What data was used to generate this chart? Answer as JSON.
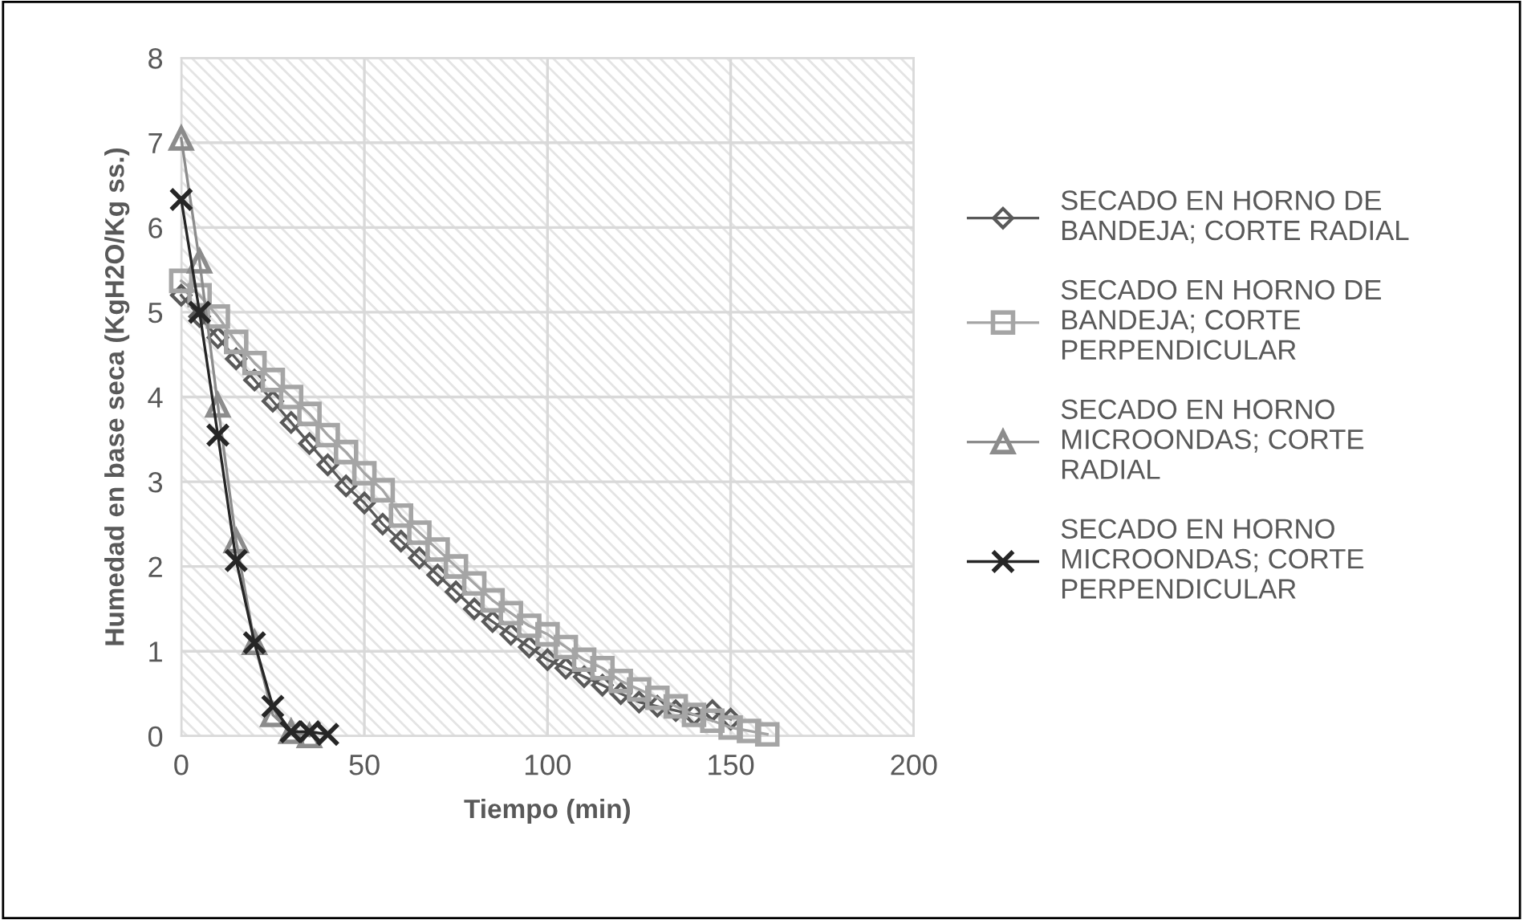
{
  "chart_data": {
    "type": "line",
    "xlabel": "Tiempo (min)",
    "ylabel": "Humedad en base seca (KgH2O/Kg ss.)",
    "xlim": [
      0,
      200
    ],
    "xticks": [
      0,
      50,
      100,
      150,
      200
    ],
    "ylim": [
      0,
      8
    ],
    "yticks": [
      0,
      1,
      2,
      3,
      4,
      5,
      6,
      7,
      8
    ],
    "grid": true,
    "legend": "right",
    "line_style": "solid",
    "series": [
      {
        "name": "SECADO EN HORNO DE BANDEJA; CORTE RADIAL",
        "color": "#595959",
        "marker": "diamond",
        "x": [
          0,
          5,
          10,
          15,
          20,
          25,
          30,
          35,
          40,
          45,
          50,
          55,
          60,
          65,
          70,
          75,
          80,
          85,
          90,
          95,
          100,
          105,
          110,
          115,
          120,
          125,
          130,
          135,
          140,
          145,
          150
        ],
        "values": [
          5.2,
          4.95,
          4.7,
          4.45,
          4.2,
          3.95,
          3.7,
          3.45,
          3.2,
          2.95,
          2.75,
          2.5,
          2.3,
          2.1,
          1.9,
          1.7,
          1.5,
          1.35,
          1.2,
          1.05,
          0.9,
          0.8,
          0.7,
          0.6,
          0.5,
          0.4,
          0.35,
          0.3,
          0.25,
          0.3,
          0.2
        ]
      },
      {
        "name": "SECADO EN HORNO DE BANDEJA; CORTE PERPENDICULAR",
        "color": "#a5a5a5",
        "marker": "square",
        "x": [
          0,
          5,
          10,
          15,
          20,
          25,
          30,
          35,
          40,
          45,
          50,
          55,
          60,
          65,
          70,
          75,
          80,
          85,
          90,
          95,
          100,
          105,
          110,
          115,
          120,
          125,
          130,
          135,
          140,
          145,
          150,
          155,
          160
        ],
        "values": [
          5.37,
          5.2,
          4.95,
          4.65,
          4.4,
          4.2,
          4.0,
          3.8,
          3.55,
          3.35,
          3.1,
          2.9,
          2.6,
          2.4,
          2.2,
          2.0,
          1.8,
          1.6,
          1.45,
          1.3,
          1.2,
          1.05,
          0.9,
          0.8,
          0.65,
          0.55,
          0.45,
          0.35,
          0.25,
          0.18,
          0.1,
          0.06,
          0.02
        ]
      },
      {
        "name": "SECADO EN HORNO MICROONDAS; CORTE RADIAL",
        "color": "#8c8c8c",
        "marker": "triangle",
        "x": [
          0,
          5,
          10,
          15,
          20,
          25,
          30,
          35
        ],
        "values": [
          7.05,
          5.6,
          3.9,
          2.3,
          1.1,
          0.25,
          0.05,
          0.0
        ]
      },
      {
        "name": "SECADO EN HORNO MICROONDAS; CORTE PERPENDICULAR",
        "color": "#262626",
        "marker": "cross",
        "x": [
          0,
          5,
          10,
          15,
          20,
          25,
          30,
          35,
          40
        ],
        "values": [
          6.33,
          5.0,
          3.55,
          2.07,
          1.1,
          0.35,
          0.05,
          0.05,
          0.02
        ]
      }
    ]
  }
}
